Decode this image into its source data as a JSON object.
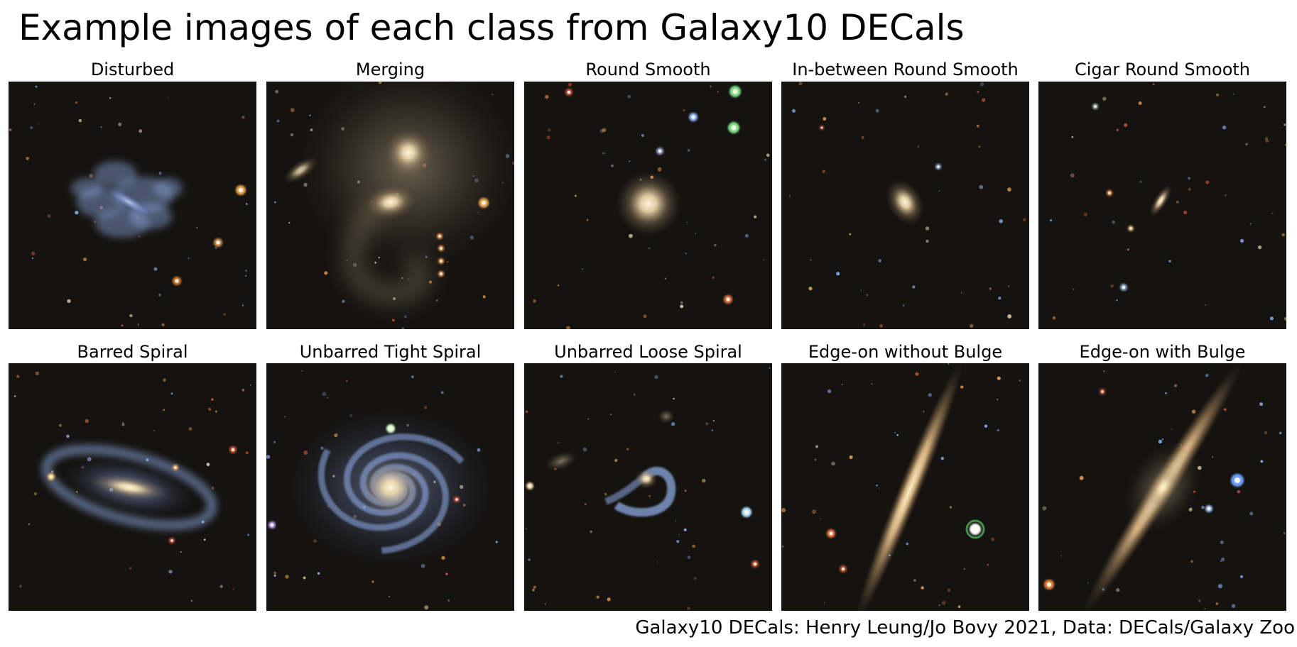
{
  "title": "Example images of each class from Galaxy10 DECals",
  "credit": "Galaxy10 DECals: Henry Leung/Jo Bovy 2021, Data: DECals/Galaxy Zoo",
  "colors": {
    "sky_background": "#151310",
    "star_red": "#c8553a",
    "star_orange": "#e8a050",
    "star_blue": "#8fb4ff",
    "galaxy_core": "#fff0cc",
    "spiral_arm_blue": "#8ca8e0"
  },
  "panels": [
    {
      "label": "Disturbed",
      "type": "disturbed"
    },
    {
      "label": "Merging",
      "type": "merging"
    },
    {
      "label": "Round Smooth",
      "type": "round"
    },
    {
      "label": "In-between Round Smooth",
      "type": "inbetween"
    },
    {
      "label": "Cigar Round Smooth",
      "type": "cigar"
    },
    {
      "label": "Barred Spiral",
      "type": "barred"
    },
    {
      "label": "Unbarred Tight Spiral",
      "type": "tight"
    },
    {
      "label": "Unbarred Loose Spiral",
      "type": "loose"
    },
    {
      "label": "Edge-on without Bulge",
      "type": "edgeon"
    },
    {
      "label": "Edge-on with Bulge",
      "type": "edgebulge"
    }
  ]
}
